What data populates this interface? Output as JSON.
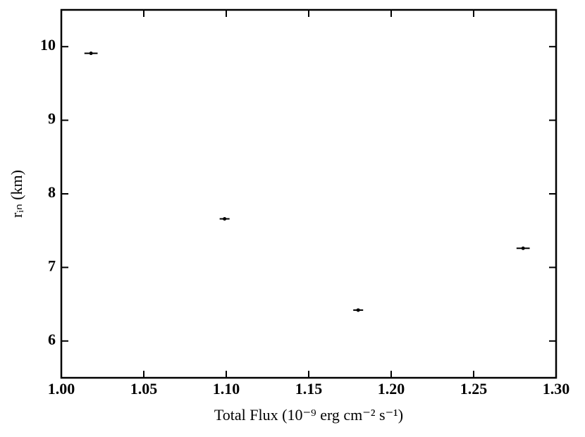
{
  "chart_data": {
    "type": "scatter",
    "x_label": "Total Flux (10⁻⁹ erg cm⁻² s⁻¹)",
    "y_label": "rᵢₙ (km)",
    "x": [
      1.018,
      1.099,
      1.18,
      1.28
    ],
    "values": [
      9.91,
      7.66,
      6.42,
      7.26
    ],
    "xerr": [
      0.004,
      0.003,
      0.003,
      0.004
    ],
    "color": "#000000",
    "xlim": [
      1.0,
      1.3
    ],
    "ylim": [
      5.5,
      10.5
    ],
    "xticks": [
      {
        "value": 1.0,
        "label": "1.00"
      },
      1.05,
      {
        "value": 1.1,
        "label": "1.10"
      },
      1.15,
      {
        "value": 1.2,
        "label": "1.20"
      },
      1.25,
      {
        "value": 1.3,
        "label": "1.30"
      }
    ],
    "yticks": [
      6,
      7,
      8,
      9,
      10
    ],
    "grid": false
  }
}
